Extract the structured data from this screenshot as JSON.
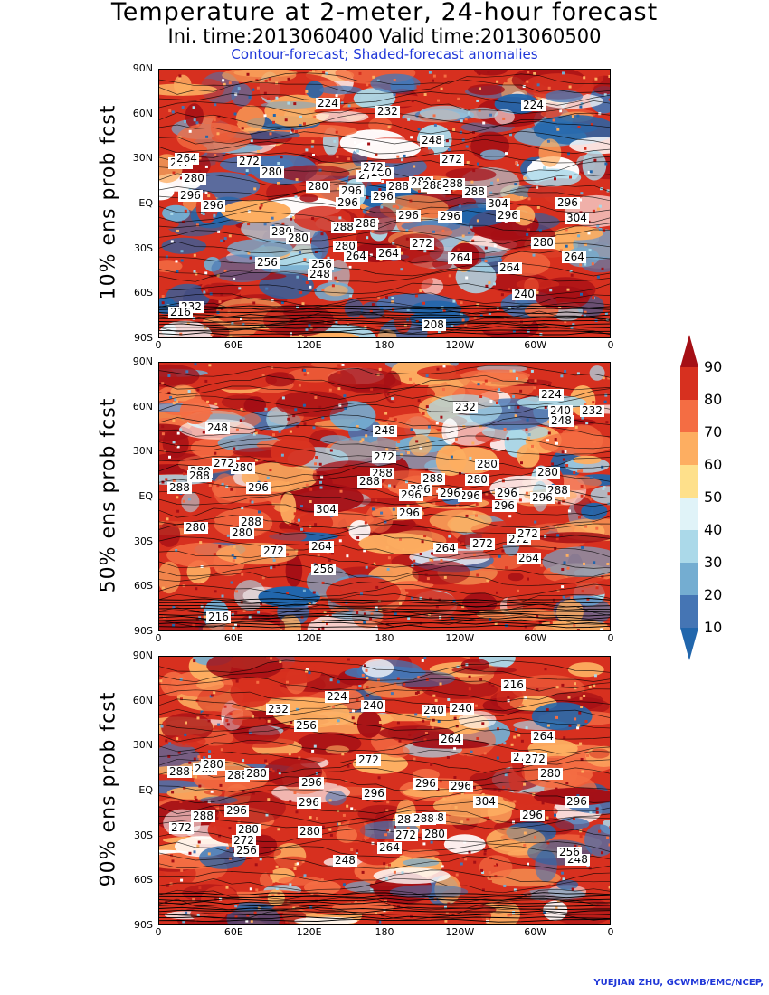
{
  "header": {
    "title": "Temperature at 2-meter, 24-hour forecast",
    "subtitle": "Ini. time:2013060400    Valid time:2013060500",
    "note": "Contour-forecast; Shaded-forecast anomalies"
  },
  "axes": {
    "lat_labels": [
      "90N",
      "60N",
      "30N",
      "EQ",
      "30S",
      "60S",
      "90S"
    ],
    "lon_labels": [
      "0",
      "60E",
      "120E",
      "180",
      "120W",
      "60W",
      "0"
    ]
  },
  "panels": [
    {
      "label": "10% ens prob fcst",
      "contour_labels": [
        "272",
        "272",
        "264",
        "264",
        "280",
        "272",
        "280",
        "272",
        "264",
        "280",
        "288",
        "280",
        "280",
        "296",
        "280",
        "288",
        "296",
        "288",
        "296",
        "304",
        "296",
        "304",
        "296",
        "288",
        "296",
        "296",
        "296",
        "288",
        "288",
        "296",
        "288",
        "280",
        "280",
        "280",
        "272",
        "264",
        "256",
        "232",
        "224",
        "248",
        "272",
        "264",
        "232",
        "248",
        "240",
        "256",
        "224",
        "216",
        "208",
        "264"
      ]
    },
    {
      "label": "50% ens prob fcst",
      "contour_labels": [
        "272",
        "272",
        "272",
        "280",
        "264",
        "288",
        "288",
        "280",
        "288",
        "280",
        "296",
        "296",
        "280",
        "288",
        "304",
        "296",
        "288",
        "296",
        "296",
        "296",
        "296",
        "296",
        "288",
        "296",
        "288",
        "280",
        "272",
        "280",
        "264",
        "256",
        "248",
        "240",
        "232",
        "224",
        "216",
        "272",
        "248",
        "280",
        "232",
        "248",
        "272",
        "264"
      ]
    },
    {
      "label": "90% ens prob fcst",
      "contour_labels": [
        "272",
        "272",
        "280",
        "288",
        "272",
        "280",
        "288",
        "272",
        "280",
        "296",
        "288",
        "288",
        "280",
        "296",
        "304",
        "296",
        "296",
        "296",
        "296",
        "288",
        "296",
        "296",
        "288",
        "288",
        "280",
        "272",
        "256",
        "264",
        "248",
        "240",
        "232",
        "224",
        "216",
        "248",
        "256",
        "264",
        "240",
        "280",
        "272",
        "256",
        "240",
        "264"
      ]
    }
  ],
  "colorbar": {
    "ticks": [
      "90",
      "80",
      "70",
      "60",
      "50",
      "40",
      "30",
      "20",
      "10"
    ],
    "colors": [
      "#a50f15",
      "#d7301f",
      "#f46d43",
      "#fdae61",
      "#fee08b",
      "#e0f3f8",
      "#abd9e9",
      "#74add1",
      "#4575b4",
      "#2166ac"
    ]
  },
  "credit": "YUEJIAN ZHU, GCWMB/EMC/NCEP,"
}
